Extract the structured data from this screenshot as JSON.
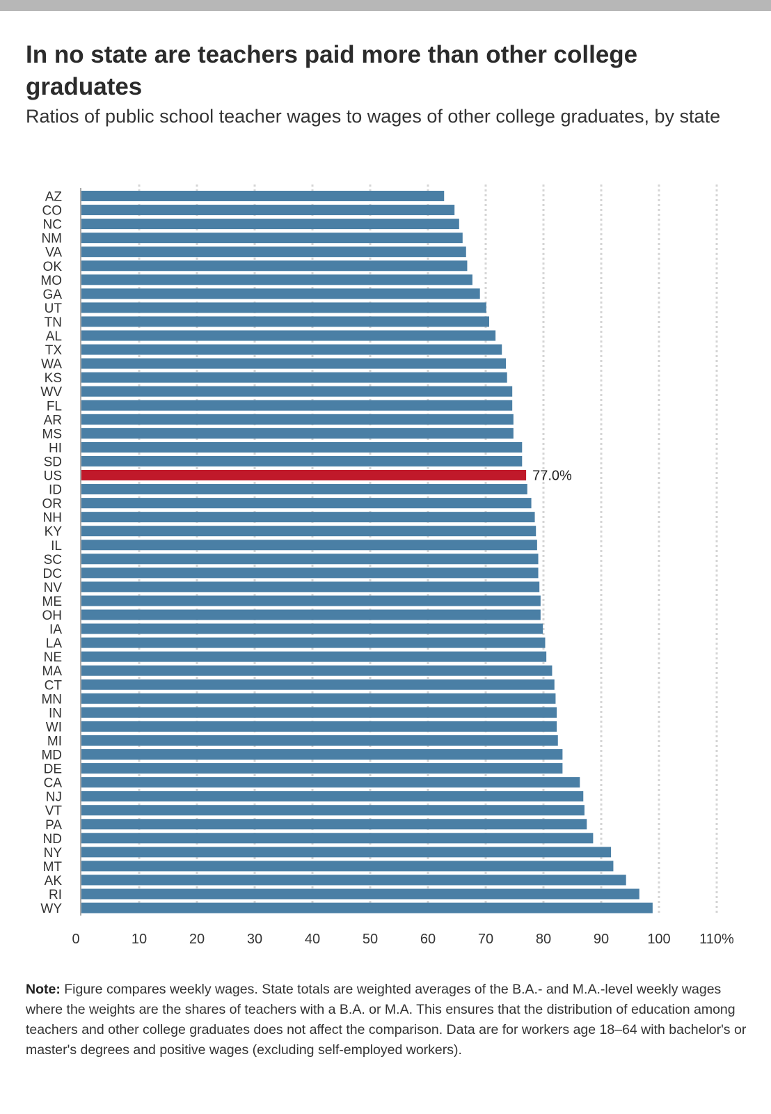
{
  "title": "In no state are teachers paid more than other college graduates",
  "subtitle": "Ratios of public school teacher wages to wages of other college graduates, by state",
  "note": {
    "label": "Note:",
    "text": "Figure compares weekly wages. State totals are weighted averages of the B.A.- and M.A.-level weekly wages where the weights are the shares of teachers with a B.A. or M.A. This ensures that the distribution of education among teachers and other college graduates does not affect the comparison. Data are for workers age 18–64 with bachelor's or master's degrees and positive wages (excluding self-employed workers)."
  },
  "colors": {
    "bar": "#4a7fa5",
    "highlight": "#c0192a",
    "grid": "#d5d5d5",
    "axis": "#aaaaaa"
  },
  "chart_data": {
    "type": "bar",
    "orientation": "horizontal",
    "categories": [
      "AZ",
      "CO",
      "NC",
      "NM",
      "VA",
      "OK",
      "MO",
      "GA",
      "UT",
      "TN",
      "AL",
      "TX",
      "WA",
      "KS",
      "WV",
      "FL",
      "AR",
      "MS",
      "HI",
      "SD",
      "US",
      "ID",
      "OR",
      "NH",
      "KY",
      "IL",
      "SC",
      "DC",
      "NV",
      "ME",
      "OH",
      "IA",
      "LA",
      "NE",
      "MA",
      "CT",
      "MN",
      "IN",
      "WI",
      "MI",
      "MD",
      "DE",
      "CA",
      "NJ",
      "VT",
      "PA",
      "ND",
      "NY",
      "MT",
      "AK",
      "RI",
      "WY"
    ],
    "values": [
      62.8,
      64.6,
      65.4,
      66.0,
      66.6,
      66.8,
      67.7,
      69.0,
      70.1,
      70.6,
      71.7,
      72.8,
      73.5,
      73.7,
      74.6,
      74.6,
      74.8,
      74.8,
      76.3,
      76.3,
      77.0,
      77.2,
      77.9,
      78.5,
      78.7,
      78.9,
      79.1,
      79.1,
      79.3,
      79.5,
      79.5,
      79.9,
      80.3,
      80.5,
      81.5,
      81.9,
      82.1,
      82.3,
      82.3,
      82.5,
      83.3,
      83.3,
      86.3,
      86.9,
      87.1,
      87.5,
      88.6,
      91.7,
      92.1,
      94.3,
      96.6,
      98.9
    ],
    "highlight": {
      "category": "US",
      "label": "77.0%"
    },
    "xlim": [
      0,
      110
    ],
    "xticks": [
      0,
      10,
      20,
      30,
      40,
      50,
      60,
      70,
      80,
      90,
      100,
      110
    ],
    "xtick_labels": [
      "0",
      "10",
      "20",
      "30",
      "40",
      "50",
      "60",
      "70",
      "80",
      "90",
      "100",
      "110%"
    ],
    "grid": "vertical dotted",
    "xlabel": "",
    "ylabel": ""
  }
}
